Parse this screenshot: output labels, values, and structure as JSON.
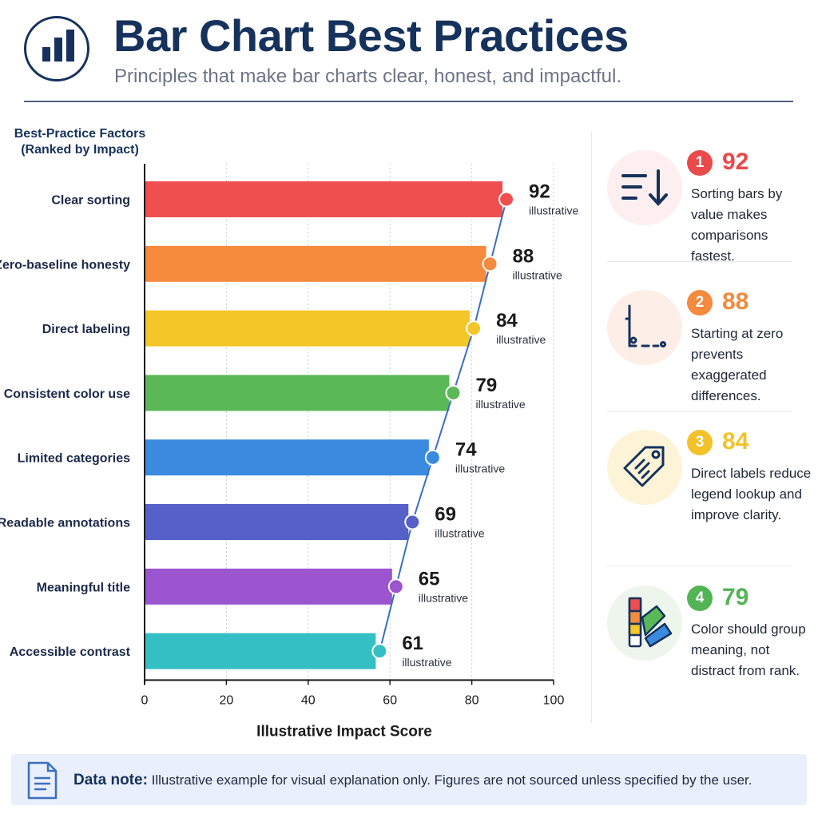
{
  "header": {
    "title": "Bar Chart Best Practices",
    "subtitle": "Principles that make bar charts clear, honest, and impactful."
  },
  "chart_data": {
    "type": "bar",
    "orientation": "horizontal",
    "y_heading": "Best-Practice Factors\n(Ranked by Impact)",
    "xlabel": "Illustrative Impact Score",
    "xlim": [
      0,
      100
    ],
    "xticks": [
      0,
      20,
      40,
      60,
      80,
      100
    ],
    "grid": true,
    "categories": [
      "Clear sorting",
      "Zero-baseline honesty",
      "Direct labeling",
      "Consistent color use",
      "Limited categories",
      "Readable annotations",
      "Meaningful title",
      "Accessible contrast"
    ],
    "values": [
      92,
      88,
      84,
      79,
      74,
      69,
      65,
      61
    ],
    "value_note": "illustrative",
    "colors": [
      "#ef4f4f",
      "#f68a3d",
      "#f5c627",
      "#5ab857",
      "#3a8be0",
      "#5560c9",
      "#9a55cf",
      "#33bfc4"
    ],
    "trend_line_color": "#3a6fc0"
  },
  "cards": [
    {
      "rank": "1",
      "score": "92",
      "text": "Sorting bars by value makes comparisons fastest.",
      "color": "#ea4a4a",
      "bg": "#fdeef0",
      "icon": "sort-descending-icon"
    },
    {
      "rank": "2",
      "score": "88",
      "text": "Starting at zero prevents exaggerated differences.",
      "color": "#f38a3d",
      "bg": "#fdeee8",
      "icon": "zero-baseline-axis-icon"
    },
    {
      "rank": "3",
      "score": "84",
      "text": "Direct labels reduce legend lookup and improve clarity.",
      "color": "#f2c22a",
      "bg": "#fdf4d8",
      "icon": "price-tag-icon"
    },
    {
      "rank": "4",
      "score": "79",
      "text": "Color should group meaning, not distract from rank.",
      "color": "#52b455",
      "bg": "#eef5ec",
      "icon": "color-swatch-icon"
    }
  ],
  "note": {
    "label": "Data note:",
    "text": "Illustrative example for visual explanation only. Figures are not sourced unless specified by the user.",
    "icon": "document-icon"
  }
}
